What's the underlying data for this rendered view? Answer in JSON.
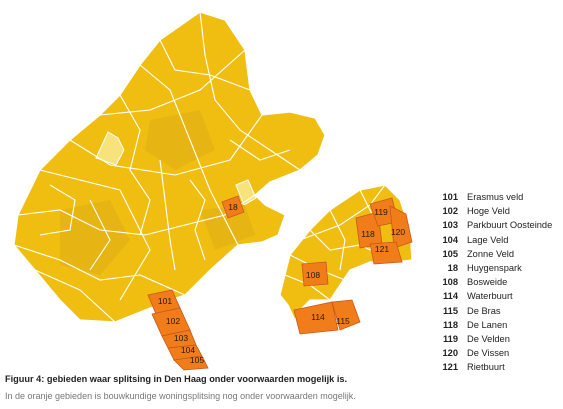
{
  "colors": {
    "district_base": "#EFBE11",
    "district_alt": "#E6B514",
    "district_light": "#F7E27C",
    "district_outline": "#FFFFFF",
    "highlight_orange": "#F07C1A",
    "highlight_outline": "#C8581A"
  },
  "map": {
    "highlighted_areas": [
      {
        "code": "18"
      },
      {
        "code": "101"
      },
      {
        "code": "102"
      },
      {
        "code": "103"
      },
      {
        "code": "104"
      },
      {
        "code": "105"
      },
      {
        "code": "108"
      },
      {
        "code": "114"
      },
      {
        "code": "115"
      },
      {
        "code": "118"
      },
      {
        "code": "119"
      },
      {
        "code": "120"
      },
      {
        "code": "121"
      }
    ]
  },
  "legend": [
    {
      "code": "101",
      "name": "Erasmus veld"
    },
    {
      "code": "102",
      "name": "Hoge Veld"
    },
    {
      "code": "103",
      "name": "Parkbuurt Oosteinde"
    },
    {
      "code": "104",
      "name": "Lage Veld"
    },
    {
      "code": "105",
      "name": "Zonne Veld"
    },
    {
      "code": "18",
      "name": "Huygenspark"
    },
    {
      "code": "108",
      "name": "Bosweide"
    },
    {
      "code": "114",
      "name": "Waterbuurt"
    },
    {
      "code": "115",
      "name": "De Bras"
    },
    {
      "code": "118",
      "name": "De Lanen"
    },
    {
      "code": "119",
      "name": "De Velden"
    },
    {
      "code": "120",
      "name": "De Vissen"
    },
    {
      "code": "121",
      "name": "Rietbuurt"
    }
  ],
  "caption": "Figuur 4: gebieden waar splitsing in Den Haag onder voorwaarden mogelijk is.",
  "subcaption": "In de oranje gebieden is bouwkundige woningsplitsing nog onder voorwaarden mogelijk."
}
